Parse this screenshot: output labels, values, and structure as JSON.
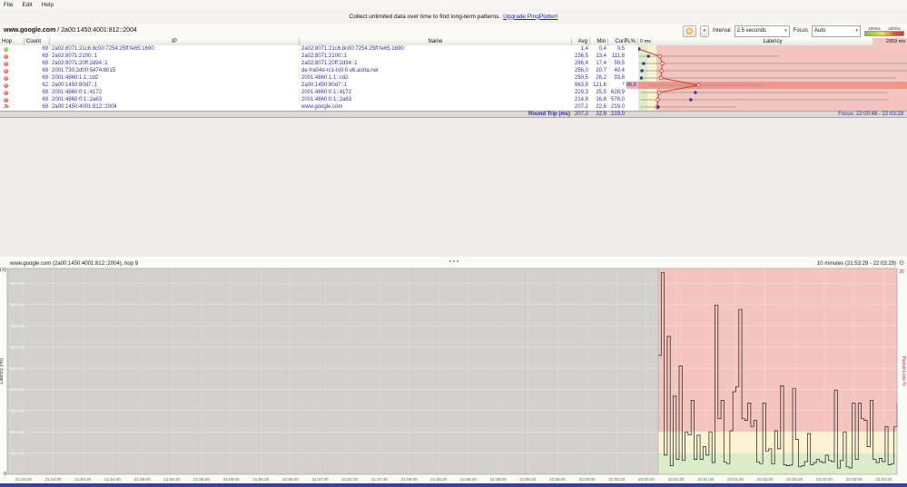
{
  "menu": {
    "items": [
      "File",
      "Edit",
      "Help"
    ]
  },
  "banner": {
    "text": "Collect unlimited data over time to find long-term patterns.",
    "link": "Upgrade PingPlotter!"
  },
  "target_bar": {
    "target": "www.google.com",
    "separator": " / ",
    "address": "2a00:1450:4001:812::2004",
    "controls": {
      "interval_label": "Interval",
      "interval_value": "2.5 seconds",
      "focus_label": "Focus",
      "focus_value": "Auto",
      "legend_labels": [
        "100ms",
        "200ms"
      ]
    }
  },
  "table": {
    "headers": {
      "hop": "Hop",
      "count": "Count",
      "ip": "IP",
      "name": "Name",
      "avg": "Avg",
      "min": "Min",
      "cur": "Cur",
      "pl": "PL%",
      "latency": "Latency",
      "scale_min": "0 ms",
      "scale_max": "2959 ms"
    },
    "rows": [
      {
        "status": "up",
        "count": "69",
        "ip": "2a02:8071:21c6:8c00:7254:25ff:fe65:1690",
        "name": "2a02:8071:21c6:8c00:7254:25ff:fe65:1690",
        "avg": "1,4",
        "min": "0,4",
        "cur": "0,5",
        "pl": ""
      },
      {
        "status": "down",
        "count": "69",
        "ip": "2a02:8071:2100::1",
        "name": "2a02:8071:2100::1",
        "avg": "236,5",
        "min": "13,4",
        "cur": "111,8",
        "pl": ""
      },
      {
        "status": "down",
        "count": "69",
        "ip": "2a02:8071:20ff:2d94::1",
        "name": "2a02:8071:20ff:2d94::1",
        "avg": "266,4",
        "min": "17,4",
        "cur": "59,5",
        "pl": ""
      },
      {
        "status": "down",
        "count": "69",
        "ip": "2001:730:2d00:5474:8015",
        "name": "de-fra04d-rc1-lo0-0.v6.aorta.net",
        "avg": "256,0",
        "min": "20,7",
        "cur": "40,4",
        "pl": ""
      },
      {
        "status": "down",
        "count": "69",
        "ip": "2001:4860:1:1::cd2",
        "name": "2001:4860:1:1::cd2",
        "avg": "250,5",
        "min": "26,2",
        "cur": "33,8",
        "pl": ""
      },
      {
        "status": "down",
        "count": "62",
        "ip": "2a00:1450:80d7::1",
        "name": "2a00:1450:80d7::1",
        "avg": "663,8",
        "min": "121,6",
        "cur": "*",
        "pl": "96,8"
      },
      {
        "status": "down",
        "count": "69",
        "ip": "2001:4860:0:1::4172",
        "name": "2001:4860:0:1::4172",
        "avg": "229,3",
        "min": "25,5",
        "cur": "628,9",
        "pl": ""
      },
      {
        "status": "down",
        "count": "69",
        "ip": "2001:4860:0:1::2a63",
        "name": "2001:4860:0:1::2a63",
        "avg": "214,8",
        "min": "16,8",
        "cur": "578,0",
        "pl": ""
      },
      {
        "status": "dest",
        "count": "69",
        "ip": "2a00:1450:4001:812::2004",
        "name": "www.google.com",
        "avg": "207,2",
        "min": "22,6",
        "cur": "219,0",
        "pl": ""
      }
    ],
    "round_trip": {
      "label": "Round Trip (ms)",
      "count": "69",
      "avg": "207,2",
      "min": "22,6",
      "cur": "219,0"
    },
    "focus_range": "Focus: 22:00:48 - 22:03:29"
  },
  "timeline": {
    "header_left": "www.google.com (2a00:1450:4001:812::2004), hop 9",
    "header_right": "10 minutes (21:53:29 - 22:03:29)",
    "gear_icon": "⚙",
    "y_max": "970",
    "y_min": "0",
    "y_label": "Latency (ms)",
    "right_label": "Packet Loss %",
    "right_max": "30",
    "grid_labels": [
      "900 ms",
      "800 ms",
      "700 ms",
      "600 ms",
      "500 ms",
      "400 ms",
      "300 ms",
      "200 ms",
      "100 ms"
    ],
    "x_ticks": [
      "21:53:40",
      "21:54:00",
      "21:54:20",
      "21:54:40",
      "21:55:00",
      "21:55:20",
      "21:55:40",
      "21:56:00",
      "21:56:20",
      "21:56:40",
      "21:57:00",
      "21:57:20",
      "21:57:40",
      "21:58:00",
      "21:58:20",
      "21:58:40",
      "21:59:00",
      "21:59:20",
      "21:59:40",
      "22:00:00",
      "22:00:20",
      "22:00:40",
      "22:01:00",
      "22:01:20",
      "22:01:40",
      "22:02:00",
      "22:02:20",
      "22:02:40",
      "22:03:00",
      "22:03:20"
    ]
  },
  "chart_data": [
    {
      "type": "hop-latency",
      "title": "Latency",
      "xlim": [
        0,
        2959
      ],
      "zones_ms": {
        "green": [
          0,
          100
        ],
        "yellow": [
          100,
          200
        ],
        "red": [
          200,
          2959
        ]
      },
      "series": [
        {
          "hop": 1,
          "avg": 1.4,
          "min": 0.4,
          "cur": 0.5,
          "max": 30,
          "loss": false
        },
        {
          "hop": 2,
          "avg": 236.5,
          "min": 13.4,
          "cur": 111.8,
          "max": 1550,
          "loss": false
        },
        {
          "hop": 3,
          "avg": 266.4,
          "min": 17.4,
          "cur": 59.5,
          "max": 2959,
          "loss": false
        },
        {
          "hop": 4,
          "avg": 256.0,
          "min": 20.7,
          "cur": 40.4,
          "max": 2959,
          "loss": false
        },
        {
          "hop": 5,
          "avg": 250.5,
          "min": 26.2,
          "cur": 33.8,
          "max": 2840,
          "loss": false
        },
        {
          "hop": 6,
          "avg": 663.8,
          "min": 121.6,
          "cur": null,
          "max": 1390,
          "loss": true
        },
        {
          "hop": 7,
          "avg": 229.3,
          "min": 25.5,
          "cur": 628.9,
          "max": 2740,
          "loss": false
        },
        {
          "hop": 8,
          "avg": 214.8,
          "min": 16.8,
          "cur": 578.0,
          "max": 2750,
          "loss": false
        },
        {
          "hop": 9,
          "avg": 207.2,
          "min": 22.6,
          "cur": 219.0,
          "max": 1070,
          "loss": false
        }
      ]
    },
    {
      "type": "line",
      "title": "www.google.com (2a00:1450:4001:812::2004), hop 9",
      "ylabel": "Latency (ms)",
      "ylim": [
        0,
        970
      ],
      "x_range": [
        "21:53:29",
        "22:03:29"
      ],
      "focus_start": "22:00:48",
      "focus_end": "22:03:29",
      "interval_seconds": 2.5,
      "values": [
        560,
        950,
        90,
        650,
        40,
        368,
        70,
        511,
        65,
        200,
        185,
        348,
        70,
        184,
        70,
        130,
        90,
        200,
        55,
        798,
        262,
        348,
        57,
        50,
        205,
        389,
        413,
        777,
        262,
        254,
        335,
        225,
        254,
        57,
        50,
        335,
        110,
        120,
        49,
        205,
        120,
        417,
        45,
        40,
        43,
        405,
        164,
        35,
        40,
        60,
        192,
        45,
        55,
        70,
        60,
        55,
        90,
        65,
        60,
        397,
        29,
        65,
        200,
        35,
        30,
        335,
        70,
        335,
        262,
        254,
        130,
        348,
        70,
        55,
        75,
        60,
        225,
        45,
        50,
        225,
        335
      ]
    }
  ],
  "colors": {
    "green_zone": "#dcecc9",
    "yellow_zone": "#faf2d0",
    "red_zone": "#f4c5be",
    "loss_row": "#f0968c",
    "avg_line": "#cf3a2c",
    "cur_marker": "#2b2bb0",
    "range_bar": "#969390",
    "unfocused": "#d2d1ce",
    "tick_text": "#3c7a3c",
    "loss_text": "#cc2222",
    "link": "#2323cc"
  }
}
